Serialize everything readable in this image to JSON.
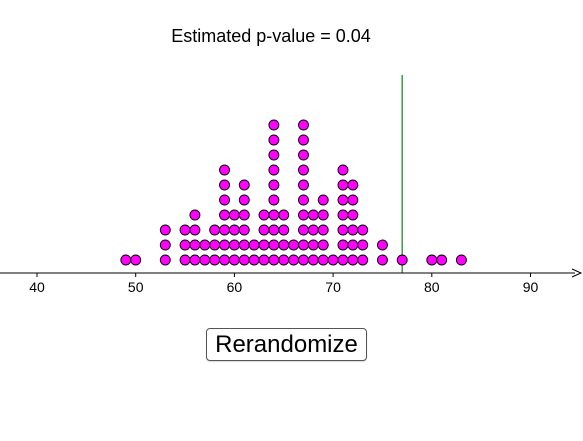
{
  "header": {
    "title": "Estimated p-value = 0.04"
  },
  "controls": {
    "rerandomize_label": "Rerandomize"
  },
  "colors": {
    "dot_fill": "#ff00ff",
    "dot_stroke": "#000000",
    "threshold_line": "#228b22",
    "axis": "#000000"
  },
  "chart_data": {
    "type": "scatter",
    "subtype": "dot-plot",
    "title": "Estimated p-value = 0.04",
    "xlabel": "",
    "ylabel": "",
    "xlim": [
      36,
      95
    ],
    "x_ticks": [
      40,
      50,
      60,
      70,
      80,
      90
    ],
    "threshold": 77,
    "grid": false,
    "counts": [
      {
        "x": 49,
        "n": 1
      },
      {
        "x": 50,
        "n": 1
      },
      {
        "x": 53,
        "n": 3
      },
      {
        "x": 55,
        "n": 3
      },
      {
        "x": 56,
        "n": 4
      },
      {
        "x": 57,
        "n": 2
      },
      {
        "x": 58,
        "n": 3
      },
      {
        "x": 59,
        "n": 7
      },
      {
        "x": 60,
        "n": 4
      },
      {
        "x": 61,
        "n": 6
      },
      {
        "x": 62,
        "n": 2
      },
      {
        "x": 63,
        "n": 4
      },
      {
        "x": 64,
        "n": 10
      },
      {
        "x": 65,
        "n": 4
      },
      {
        "x": 66,
        "n": 2
      },
      {
        "x": 67,
        "n": 10
      },
      {
        "x": 68,
        "n": 4
      },
      {
        "x": 69,
        "n": 5
      },
      {
        "x": 70,
        "n": 1
      },
      {
        "x": 71,
        "n": 7
      },
      {
        "x": 72,
        "n": 6
      },
      {
        "x": 73,
        "n": 3
      },
      {
        "x": 75,
        "n": 2
      },
      {
        "x": 77,
        "n": 1
      },
      {
        "x": 80,
        "n": 1
      },
      {
        "x": 81,
        "n": 1
      },
      {
        "x": 83,
        "n": 1
      }
    ]
  }
}
